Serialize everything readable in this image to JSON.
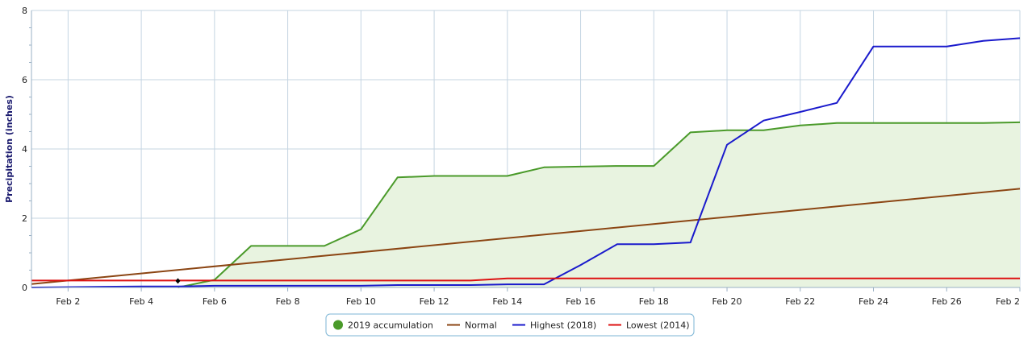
{
  "chart_data": {
    "type": "line",
    "title": "",
    "xlabel": "",
    "ylabel": "Precipitation (inches)",
    "x_range": [
      1,
      28
    ],
    "ylim": [
      0,
      8
    ],
    "y_ticks": [
      0,
      2,
      4,
      6,
      8
    ],
    "x_ticks": [
      {
        "day": 2,
        "label": "Feb 2"
      },
      {
        "day": 4,
        "label": "Feb 4"
      },
      {
        "day": 6,
        "label": "Feb 6"
      },
      {
        "day": 8,
        "label": "Feb 8"
      },
      {
        "day": 10,
        "label": "Feb 10"
      },
      {
        "day": 12,
        "label": "Feb 12"
      },
      {
        "day": 14,
        "label": "Feb 14"
      },
      {
        "day": 16,
        "label": "Feb 16"
      },
      {
        "day": 18,
        "label": "Feb 18"
      },
      {
        "day": 20,
        "label": "Feb 20"
      },
      {
        "day": 22,
        "label": "Feb 22"
      },
      {
        "day": 24,
        "label": "Feb 24"
      },
      {
        "day": 26,
        "label": "Feb 26"
      },
      {
        "day": 28,
        "label": "Feb 2"
      }
    ],
    "grid": true,
    "legend_position": "bottom-center",
    "series": [
      {
        "name": "2019 accumulation",
        "color": "#4a9a2a",
        "fill": "#e8f3e0",
        "area": true,
        "x": [
          5,
          6,
          7,
          8,
          9,
          10,
          11,
          12,
          13,
          14,
          15,
          16,
          17,
          18,
          19,
          20,
          21,
          22,
          23,
          24,
          25,
          26,
          27,
          28
        ],
        "values": [
          0.0,
          0.22,
          1.2,
          1.2,
          1.2,
          1.68,
          3.18,
          3.22,
          3.22,
          3.22,
          3.47,
          3.49,
          3.51,
          3.51,
          4.48,
          4.54,
          4.54,
          4.68,
          4.75,
          4.75,
          4.75,
          4.75,
          4.75,
          4.77
        ]
      },
      {
        "name": "Normal",
        "color": "#8b4513",
        "x": [
          1,
          28
        ],
        "values": [
          0.1,
          2.85
        ]
      },
      {
        "name": "Highest (2018)",
        "color": "#1a1acc",
        "x": [
          1,
          4,
          5,
          6,
          10,
          11,
          12,
          13,
          14,
          15,
          16,
          17,
          18,
          19,
          20,
          21,
          22,
          23,
          24,
          25,
          26,
          27,
          28
        ],
        "values": [
          0.0,
          0.03,
          0.03,
          0.05,
          0.05,
          0.07,
          0.07,
          0.07,
          0.09,
          0.09,
          0.65,
          1.25,
          1.25,
          1.3,
          4.12,
          4.82,
          5.07,
          5.33,
          6.96,
          6.96,
          6.96,
          7.12,
          7.2
        ]
      },
      {
        "name": "Lowest (2014)",
        "color": "#dd1111",
        "x": [
          1,
          13,
          14,
          28
        ],
        "values": [
          0.2,
          0.2,
          0.26,
          0.26
        ]
      }
    ],
    "marker": {
      "day": 5,
      "value": 0.19,
      "color": "#000000"
    }
  }
}
